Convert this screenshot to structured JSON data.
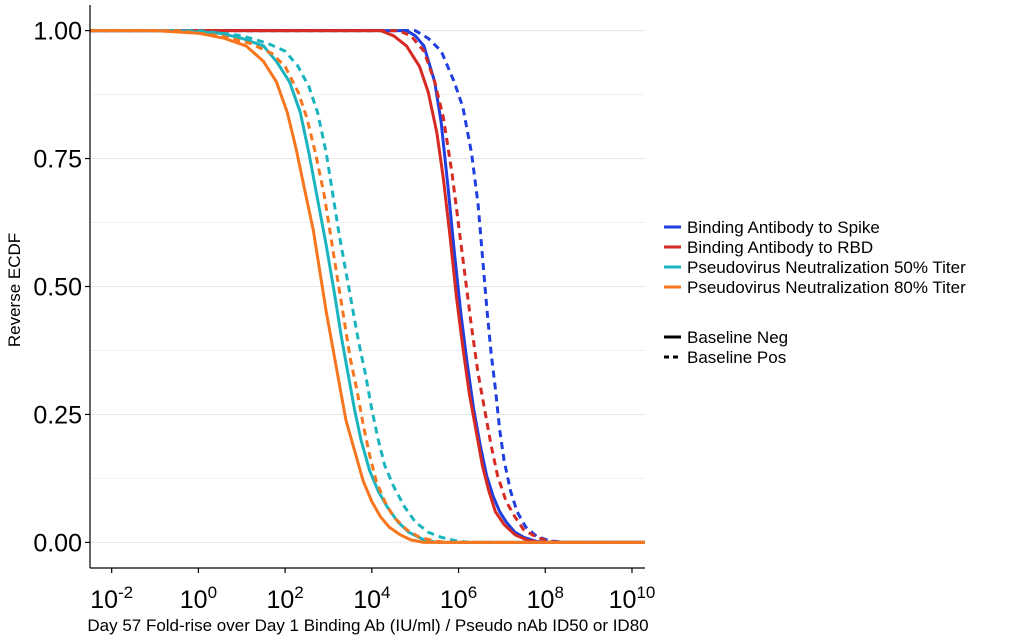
{
  "chart_data": {
    "type": "line",
    "xlabel": "Day 57 Fold-rise over Day 1 Binding Ab (IU/ml) / Pseudo nAb ID50 or ID80",
    "ylabel": "Reverse ECDF",
    "x_scale": "log10",
    "xlim_log10": [
      -2.5,
      10.3
    ],
    "ylim": [
      -0.05,
      1.05
    ],
    "x_ticks": [
      {
        "base": "10",
        "exp": "-2",
        "log10": -2
      },
      {
        "base": "10",
        "exp": "0",
        "log10": 0
      },
      {
        "base": "10",
        "exp": "2",
        "log10": 2
      },
      {
        "base": "10",
        "exp": "4",
        "log10": 4
      },
      {
        "base": "10",
        "exp": "6",
        "log10": 6
      },
      {
        "base": "10",
        "exp": "8",
        "log10": 8
      },
      {
        "base": "10",
        "exp": "10",
        "log10": 10
      }
    ],
    "y_ticks": [
      {
        "label": "0.00",
        "value": 0
      },
      {
        "label": "0.25",
        "value": 0.25
      },
      {
        "label": "0.50",
        "value": 0.5
      },
      {
        "label": "0.75",
        "value": 0.75
      },
      {
        "label": "1.00",
        "value": 1
      }
    ],
    "grid": "horizontal",
    "legend_position": "right",
    "colors": {
      "spike": "#1f3fe0",
      "rbd": "#d62a22",
      "id50": "#1ab4bf",
      "id80": "#f7761f"
    },
    "color_legend": [
      {
        "label": "Binding Antibody to Spike",
        "key": "spike"
      },
      {
        "label": "Binding Antibody to RBD",
        "key": "rbd"
      },
      {
        "label": "Pseudovirus Neutralization 50% Titer",
        "key": "id50"
      },
      {
        "label": "Pseudovirus Neutralization 80% Titer",
        "key": "id80"
      }
    ],
    "linetype_legend": [
      {
        "label": "Baseline Neg",
        "dash": "solid"
      },
      {
        "label": "Baseline Pos",
        "dash": "dashed"
      }
    ],
    "series": [
      {
        "assay": "spike",
        "baseline": "Baseline Neg",
        "dash": "solid",
        "points": [
          [
            -2.5,
            1
          ],
          [
            4.8,
            1
          ],
          [
            5.0,
            0.99
          ],
          [
            5.2,
            0.97
          ],
          [
            5.45,
            0.9
          ],
          [
            5.6,
            0.82
          ],
          [
            5.75,
            0.7
          ],
          [
            5.9,
            0.57
          ],
          [
            6.05,
            0.45
          ],
          [
            6.2,
            0.35
          ],
          [
            6.35,
            0.26
          ],
          [
            6.5,
            0.19
          ],
          [
            6.65,
            0.13
          ],
          [
            6.8,
            0.09
          ],
          [
            6.95,
            0.06
          ],
          [
            7.1,
            0.04
          ],
          [
            7.3,
            0.02
          ],
          [
            7.5,
            0.01
          ],
          [
            7.8,
            0.002
          ],
          [
            8.0,
            0
          ],
          [
            10.3,
            0
          ]
        ]
      },
      {
        "assay": "spike",
        "baseline": "Baseline Pos",
        "dash": "dashed",
        "points": [
          [
            -2.5,
            1
          ],
          [
            5.0,
            1
          ],
          [
            5.3,
            0.985
          ],
          [
            5.6,
            0.96
          ],
          [
            5.9,
            0.9
          ],
          [
            6.1,
            0.85
          ],
          [
            6.3,
            0.76
          ],
          [
            6.45,
            0.66
          ],
          [
            6.55,
            0.56
          ],
          [
            6.65,
            0.46
          ],
          [
            6.75,
            0.37
          ],
          [
            6.85,
            0.3
          ],
          [
            6.95,
            0.22
          ],
          [
            7.05,
            0.16
          ],
          [
            7.2,
            0.1
          ],
          [
            7.35,
            0.06
          ],
          [
            7.55,
            0.03
          ],
          [
            7.8,
            0.012
          ],
          [
            8.1,
            0.003
          ],
          [
            8.5,
            0
          ],
          [
            10.3,
            0
          ]
        ]
      },
      {
        "assay": "rbd",
        "baseline": "Baseline Neg",
        "dash": "solid",
        "points": [
          [
            -2.5,
            1
          ],
          [
            4.2,
            1
          ],
          [
            4.5,
            0.99
          ],
          [
            4.8,
            0.97
          ],
          [
            5.1,
            0.93
          ],
          [
            5.3,
            0.88
          ],
          [
            5.5,
            0.8
          ],
          [
            5.65,
            0.71
          ],
          [
            5.8,
            0.6
          ],
          [
            5.95,
            0.48
          ],
          [
            6.1,
            0.38
          ],
          [
            6.25,
            0.29
          ],
          [
            6.4,
            0.22
          ],
          [
            6.55,
            0.15
          ],
          [
            6.7,
            0.1
          ],
          [
            6.85,
            0.06
          ],
          [
            7.05,
            0.035
          ],
          [
            7.3,
            0.015
          ],
          [
            7.6,
            0.004
          ],
          [
            7.9,
            0
          ],
          [
            10.3,
            0
          ]
        ]
      },
      {
        "assay": "rbd",
        "baseline": "Baseline Pos",
        "dash": "dashed",
        "points": [
          [
            -2.5,
            1
          ],
          [
            4.6,
            1
          ],
          [
            4.9,
            0.99
          ],
          [
            5.2,
            0.96
          ],
          [
            5.45,
            0.9
          ],
          [
            5.65,
            0.83
          ],
          [
            5.85,
            0.72
          ],
          [
            6.0,
            0.62
          ],
          [
            6.15,
            0.52
          ],
          [
            6.3,
            0.42
          ],
          [
            6.45,
            0.33
          ],
          [
            6.6,
            0.26
          ],
          [
            6.75,
            0.19
          ],
          [
            6.9,
            0.13
          ],
          [
            7.1,
            0.08
          ],
          [
            7.3,
            0.05
          ],
          [
            7.5,
            0.025
          ],
          [
            7.8,
            0.01
          ],
          [
            8.1,
            0.002
          ],
          [
            8.4,
            0
          ],
          [
            10.3,
            0
          ]
        ]
      },
      {
        "assay": "id50",
        "baseline": "Baseline Neg",
        "dash": "solid",
        "points": [
          [
            -2.5,
            1
          ],
          [
            -0.5,
            1
          ],
          [
            0.5,
            0.995
          ],
          [
            1.0,
            0.985
          ],
          [
            1.5,
            0.97
          ],
          [
            1.8,
            0.94
          ],
          [
            2.1,
            0.9
          ],
          [
            2.35,
            0.84
          ],
          [
            2.55,
            0.76
          ],
          [
            2.75,
            0.67
          ],
          [
            2.95,
            0.58
          ],
          [
            3.15,
            0.48
          ],
          [
            3.3,
            0.4
          ],
          [
            3.45,
            0.33
          ],
          [
            3.6,
            0.26
          ],
          [
            3.75,
            0.2
          ],
          [
            3.95,
            0.14
          ],
          [
            4.15,
            0.1
          ],
          [
            4.35,
            0.07
          ],
          [
            4.6,
            0.04
          ],
          [
            4.85,
            0.02
          ],
          [
            5.2,
            0.005
          ],
          [
            5.5,
            0
          ],
          [
            10.3,
            0
          ]
        ]
      },
      {
        "assay": "id50",
        "baseline": "Baseline Pos",
        "dash": "dashed",
        "points": [
          [
            -2.5,
            1
          ],
          [
            0.0,
            1
          ],
          [
            1.0,
            0.99
          ],
          [
            1.6,
            0.975
          ],
          [
            2.0,
            0.96
          ],
          [
            2.3,
            0.93
          ],
          [
            2.55,
            0.89
          ],
          [
            2.75,
            0.84
          ],
          [
            2.95,
            0.76
          ],
          [
            3.1,
            0.68
          ],
          [
            3.25,
            0.6
          ],
          [
            3.4,
            0.53
          ],
          [
            3.55,
            0.46
          ],
          [
            3.7,
            0.39
          ],
          [
            3.85,
            0.33
          ],
          [
            4.0,
            0.26
          ],
          [
            4.15,
            0.2
          ],
          [
            4.3,
            0.15
          ],
          [
            4.5,
            0.11
          ],
          [
            4.75,
            0.07
          ],
          [
            5.0,
            0.04
          ],
          [
            5.3,
            0.02
          ],
          [
            5.6,
            0.01
          ],
          [
            6.0,
            0.002
          ],
          [
            6.3,
            0
          ],
          [
            10.3,
            0
          ]
        ]
      },
      {
        "assay": "id80",
        "baseline": "Baseline Neg",
        "dash": "solid",
        "points": [
          [
            -2.5,
            1
          ],
          [
            -1.0,
            1
          ],
          [
            0.0,
            0.995
          ],
          [
            0.6,
            0.985
          ],
          [
            1.1,
            0.97
          ],
          [
            1.5,
            0.94
          ],
          [
            1.8,
            0.9
          ],
          [
            2.05,
            0.84
          ],
          [
            2.25,
            0.77
          ],
          [
            2.45,
            0.69
          ],
          [
            2.65,
            0.61
          ],
          [
            2.8,
            0.53
          ],
          [
            2.95,
            0.45
          ],
          [
            3.1,
            0.38
          ],
          [
            3.25,
            0.31
          ],
          [
            3.4,
            0.24
          ],
          [
            3.6,
            0.18
          ],
          [
            3.8,
            0.12
          ],
          [
            4.0,
            0.08
          ],
          [
            4.2,
            0.05
          ],
          [
            4.4,
            0.03
          ],
          [
            4.65,
            0.015
          ],
          [
            4.9,
            0.005
          ],
          [
            5.2,
            0
          ],
          [
            10.3,
            0
          ]
        ]
      },
      {
        "assay": "id80",
        "baseline": "Baseline Pos",
        "dash": "dashed",
        "points": [
          [
            -2.5,
            1
          ],
          [
            -0.5,
            1
          ],
          [
            0.5,
            0.99
          ],
          [
            1.2,
            0.975
          ],
          [
            1.7,
            0.955
          ],
          [
            2.0,
            0.93
          ],
          [
            2.3,
            0.88
          ],
          [
            2.5,
            0.83
          ],
          [
            2.7,
            0.76
          ],
          [
            2.9,
            0.68
          ],
          [
            3.05,
            0.6
          ],
          [
            3.2,
            0.52
          ],
          [
            3.35,
            0.44
          ],
          [
            3.5,
            0.36
          ],
          [
            3.65,
            0.3
          ],
          [
            3.8,
            0.23
          ],
          [
            3.95,
            0.17
          ],
          [
            4.1,
            0.12
          ],
          [
            4.3,
            0.08
          ],
          [
            4.5,
            0.05
          ],
          [
            4.8,
            0.025
          ],
          [
            5.1,
            0.01
          ],
          [
            5.5,
            0.002
          ],
          [
            5.8,
            0
          ],
          [
            10.3,
            0
          ]
        ]
      }
    ]
  }
}
